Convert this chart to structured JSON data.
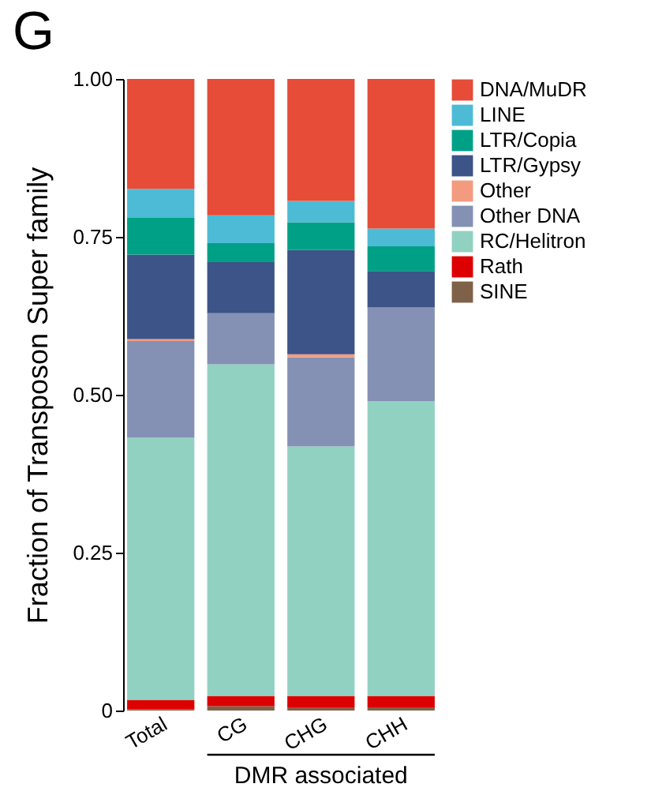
{
  "chart_data": {
    "type": "bar",
    "title": "G",
    "ylabel": "Fraction of Transposon Super family",
    "categories": [
      "Total",
      "CG",
      "CHG",
      "CHH"
    ],
    "stacked": true,
    "series": [
      {
        "name": "SINE",
        "color": "#7e6148",
        "values": [
          0.002,
          0.007,
          0.004,
          0.005
        ]
      },
      {
        "name": "Rath",
        "color": "#dc0000",
        "values": [
          0.015,
          0.016,
          0.019,
          0.018
        ]
      },
      {
        "name": "RC/Helitron",
        "color": "#91d1c2",
        "values": [
          0.415,
          0.525,
          0.395,
          0.467
        ]
      },
      {
        "name": "Other DNA",
        "color": "#8491b4",
        "values": [
          0.153,
          0.081,
          0.141,
          0.148
        ]
      },
      {
        "name": "Other",
        "color": "#f39b7f",
        "values": [
          0.003,
          0,
          0.005,
          0
        ]
      },
      {
        "name": "LTR/Gypsy",
        "color": "#3c5488",
        "values": [
          0.134,
          0.081,
          0.165,
          0.058
        ]
      },
      {
        "name": "LTR/Copia",
        "color": "#00a087",
        "values": [
          0.058,
          0.03,
          0.044,
          0.039
        ]
      },
      {
        "name": "LINE",
        "color": "#4dbbd5",
        "values": [
          0.046,
          0.044,
          0.034,
          0.028
        ]
      },
      {
        "name": "DNA/MuDR",
        "color": "#e64c37",
        "values": [
          0.174,
          0.216,
          0.193,
          0.237
        ]
      }
    ],
    "ylim": [
      0,
      1
    ],
    "yticks": [
      0,
      0.25,
      {
        "value": 0.5,
        "label": "0.50"
      },
      0.75,
      {
        "value": 1,
        "label": "1.00"
      }
    ],
    "grid": false,
    "legend": "right",
    "annotations": [
      "DMR associated"
    ]
  }
}
